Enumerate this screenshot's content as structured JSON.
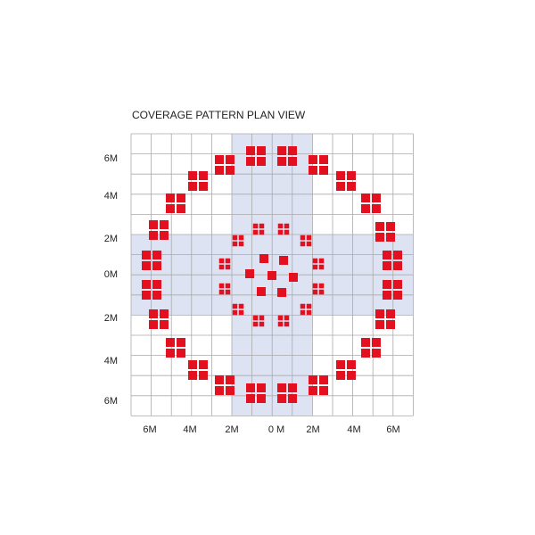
{
  "title": "COVERAGE PATTERN PLAN VIEW",
  "y_labels": [
    "6M",
    "4M",
    "2M",
    "0M",
    "2M",
    "4M",
    "6M"
  ],
  "x_labels": [
    "6M",
    "4M",
    "2M",
    "0 M",
    "2M",
    "4M",
    "6M"
  ]
}
